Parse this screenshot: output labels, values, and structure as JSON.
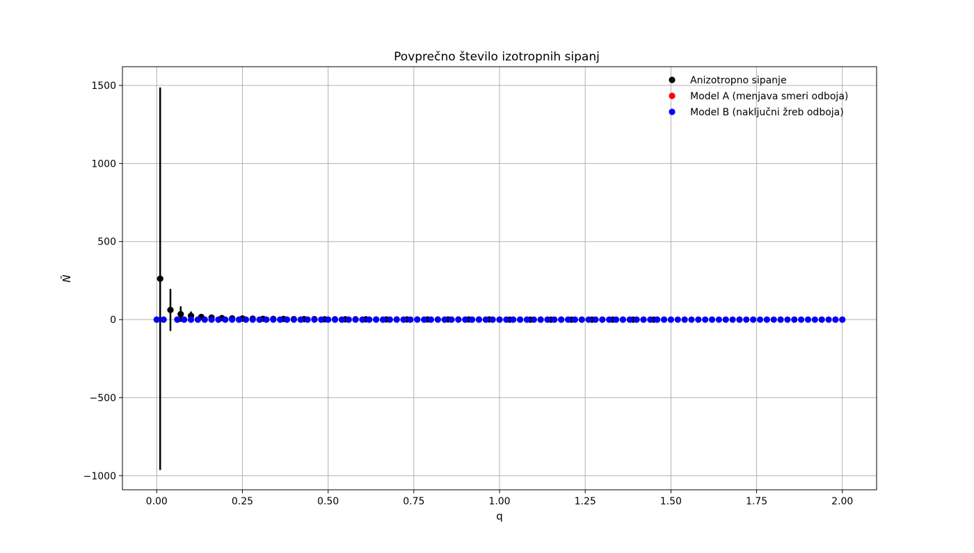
{
  "chart_data": {
    "type": "scatter",
    "title": "Povprečno število izotropnih sipanj",
    "xlabel": "q",
    "ylabel": "N̄",
    "xlim": [
      -0.1,
      2.1
    ],
    "ylim": [
      -1090,
      1620
    ],
    "grid": true,
    "legend": "top-right",
    "xticks": [
      0.0,
      0.25,
      0.5,
      0.75,
      1.0,
      1.25,
      1.5,
      1.75,
      2.0
    ],
    "xtick_labels": [
      "0.00",
      "0.25",
      "0.50",
      "0.75",
      "1.00",
      "1.25",
      "1.50",
      "1.75",
      "2.00"
    ],
    "yticks": [
      -1000,
      -500,
      0,
      500,
      1000,
      1500
    ],
    "ytick_labels": [
      "−1000",
      "−500",
      "0",
      "500",
      "1000",
      "1500"
    ],
    "series": [
      {
        "name": "Anizotropno sipanje",
        "color": "#000000",
        "x": [
          0.01,
          0.04,
          0.07,
          0.1,
          0.13,
          0.16,
          0.19,
          0.22,
          0.25,
          0.28,
          0.31,
          0.34,
          0.37,
          0.4,
          0.43,
          0.46,
          0.49,
          0.52,
          0.55,
          0.58,
          0.61,
          0.64,
          0.67,
          0.7,
          0.73,
          0.76,
          0.79,
          0.82,
          0.85,
          0.88,
          0.91,
          0.94,
          0.97,
          1.0,
          1.03,
          1.06,
          1.09,
          1.12,
          1.15,
          1.18,
          1.21,
          1.24,
          1.27,
          1.3,
          1.33,
          1.36,
          1.39,
          1.42,
          1.45,
          1.48
        ],
        "y": [
          262,
          62,
          35,
          24,
          17,
          13,
          10,
          8,
          7,
          6,
          5,
          4,
          4,
          3,
          3,
          3,
          2,
          2,
          2,
          2,
          2,
          1,
          1,
          1,
          1,
          1,
          1,
          1,
          1,
          1,
          1,
          1,
          1,
          0,
          0,
          0,
          0,
          0,
          0,
          0,
          0,
          0,
          0,
          0,
          0,
          0,
          0,
          0,
          0,
          0
        ],
        "err": [
          1225,
          135,
          50,
          28,
          16,
          11,
          8,
          6,
          4,
          3,
          2,
          2,
          2,
          1,
          1,
          1,
          1,
          1,
          1,
          1,
          1,
          1,
          0,
          0,
          0,
          0,
          0,
          0,
          0,
          0,
          0,
          0,
          0,
          0,
          0,
          0,
          0,
          0,
          0,
          0,
          0,
          0,
          0,
          0,
          0,
          0,
          0,
          0,
          0,
          0
        ]
      },
      {
        "name": " Model A (menjava smeri odboja)",
        "color": "#ff0000",
        "x": [
          0.0,
          0.02,
          0.06,
          0.08,
          0.1,
          0.12,
          0.14,
          0.18,
          0.2,
          0.24,
          0.26,
          0.3,
          0.32,
          0.36,
          0.38,
          0.42,
          0.44,
          0.48,
          0.5,
          0.54,
          0.56,
          0.6,
          0.62,
          0.66,
          0.68,
          0.72,
          0.74,
          0.78,
          0.8,
          0.84,
          0.86,
          0.9,
          0.92,
          0.96,
          0.98,
          1.02,
          1.04,
          1.08,
          1.1,
          1.14,
          1.16,
          1.2,
          1.22,
          1.26,
          1.28,
          1.32,
          1.34,
          1.38,
          1.4,
          1.44,
          1.46,
          1.5,
          1.54,
          1.58,
          1.62,
          1.66,
          1.7,
          1.74,
          1.78,
          1.82,
          1.86,
          1.9,
          1.94,
          1.98,
          2.0
        ],
        "y": [
          0,
          0,
          0,
          0,
          0,
          0,
          0,
          0,
          0,
          0,
          0,
          0,
          0,
          0,
          0,
          0,
          0,
          0,
          0,
          0,
          0,
          0,
          0,
          0,
          0,
          0,
          0,
          0,
          0,
          0,
          0,
          0,
          0,
          0,
          0,
          0,
          0,
          0,
          0,
          0,
          0,
          0,
          0,
          0,
          0,
          0,
          0,
          0,
          0,
          0,
          0,
          0,
          0,
          0,
          0,
          0,
          0,
          0,
          0,
          0,
          0,
          0,
          0,
          0,
          0
        ]
      },
      {
        "name": " Model B (naključni žreb odboja)",
        "color": "#0000ff",
        "x": [
          0.0,
          0.02,
          0.06,
          0.08,
          0.1,
          0.12,
          0.14,
          0.16,
          0.18,
          0.2,
          0.22,
          0.24,
          0.26,
          0.28,
          0.3,
          0.32,
          0.34,
          0.36,
          0.38,
          0.4,
          0.42,
          0.44,
          0.46,
          0.48,
          0.5,
          0.52,
          0.54,
          0.56,
          0.58,
          0.6,
          0.62,
          0.64,
          0.66,
          0.68,
          0.7,
          0.72,
          0.74,
          0.76,
          0.78,
          0.8,
          0.82,
          0.84,
          0.86,
          0.88,
          0.9,
          0.92,
          0.94,
          0.96,
          0.98,
          1.0,
          1.02,
          1.04,
          1.06,
          1.08,
          1.1,
          1.12,
          1.14,
          1.16,
          1.18,
          1.2,
          1.22,
          1.24,
          1.26,
          1.28,
          1.3,
          1.32,
          1.34,
          1.36,
          1.38,
          1.4,
          1.42,
          1.44,
          1.46,
          1.48,
          1.5,
          1.52,
          1.54,
          1.56,
          1.58,
          1.6,
          1.62,
          1.64,
          1.66,
          1.68,
          1.7,
          1.72,
          1.74,
          1.76,
          1.78,
          1.8,
          1.82,
          1.84,
          1.86,
          1.88,
          1.9,
          1.92,
          1.94,
          1.96,
          1.98,
          2.0
        ],
        "y": [
          0,
          0,
          0,
          0,
          0,
          0,
          0,
          0,
          0,
          0,
          0,
          0,
          0,
          0,
          0,
          0,
          0,
          0,
          0,
          0,
          0,
          0,
          0,
          0,
          0,
          0,
          0,
          0,
          0,
          0,
          0,
          0,
          0,
          0,
          0,
          0,
          0,
          0,
          0,
          0,
          0,
          0,
          0,
          0,
          0,
          0,
          0,
          0,
          0,
          0,
          0,
          0,
          0,
          0,
          0,
          0,
          0,
          0,
          0,
          0,
          0,
          0,
          0,
          0,
          0,
          0,
          0,
          0,
          0,
          0,
          0,
          0,
          0,
          0,
          0,
          0,
          0,
          0,
          0,
          0,
          0,
          0,
          0,
          0,
          0,
          0,
          0,
          0,
          0,
          0,
          0,
          0,
          0,
          0,
          0,
          0,
          0,
          0,
          0,
          0
        ]
      }
    ]
  }
}
